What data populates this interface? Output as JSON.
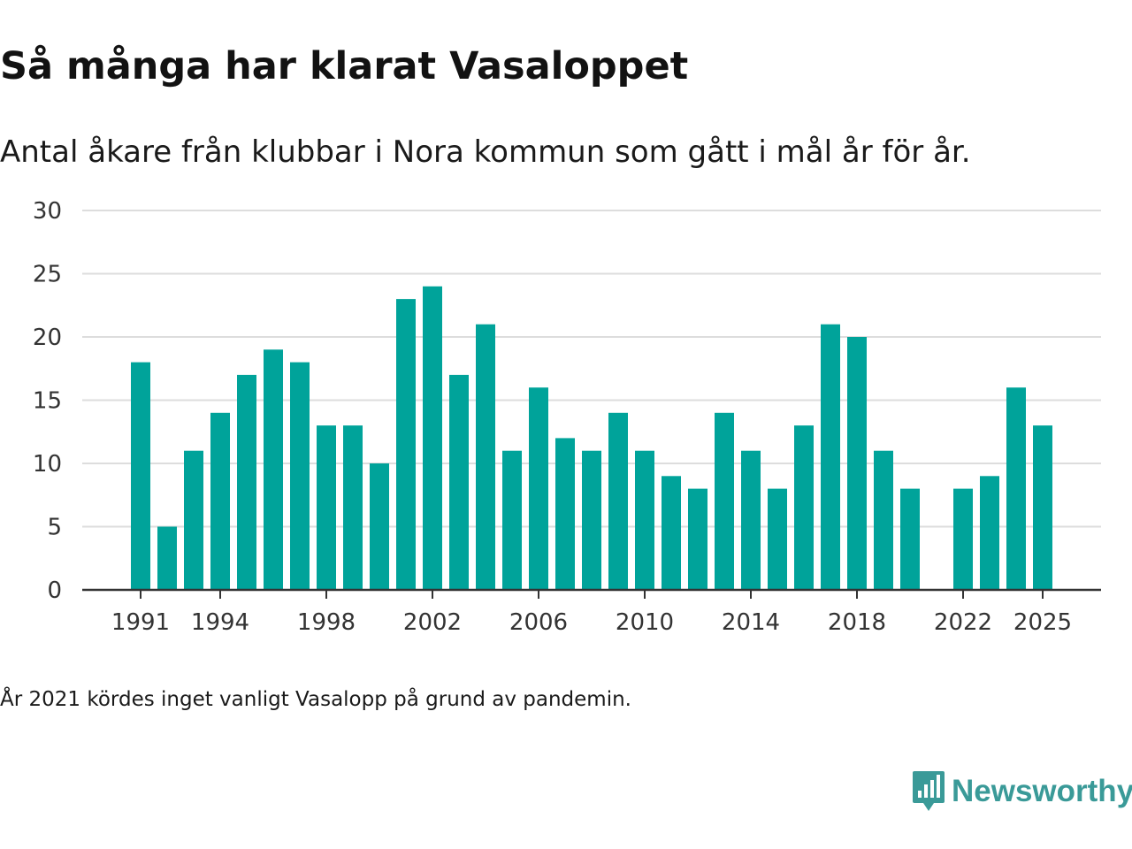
{
  "title": "Så många har klarat Vasaloppet",
  "subtitle": "Antal åkare från klubbar i Nora kommun som gått i mål år för år.",
  "note": "År 2021 kördes inget vanligt Vasalopp på grund av pandemin.",
  "logo": {
    "text": "Newsworthy",
    "color": "#3a9a98"
  },
  "colors": {
    "bar": "#00a39a",
    "grid": "#dddddd",
    "axis": "#333333"
  },
  "chart_data": {
    "type": "bar",
    "title": "Så många har klarat Vasaloppet",
    "xlabel": "",
    "ylabel": "",
    "ylim": [
      0,
      30
    ],
    "yticks": [
      0,
      5,
      10,
      15,
      20,
      25,
      30
    ],
    "grid": true,
    "xtick_labels": [
      "1991",
      "1994",
      "1998",
      "2002",
      "2006",
      "2010",
      "2014",
      "2018",
      "2022",
      "2025"
    ],
    "categories": [
      "1991",
      "1992",
      "1993",
      "1994",
      "1995",
      "1996",
      "1997",
      "1998",
      "1999",
      "2000",
      "2001",
      "2002",
      "2003",
      "2004",
      "2005",
      "2006",
      "2007",
      "2008",
      "2009",
      "2010",
      "2011",
      "2012",
      "2013",
      "2014",
      "2015",
      "2016",
      "2017",
      "2018",
      "2019",
      "2020",
      "2021",
      "2022",
      "2023",
      "2024",
      "2025"
    ],
    "values": [
      18,
      5,
      11,
      14,
      17,
      19,
      18,
      13,
      13,
      10,
      23,
      24,
      17,
      21,
      11,
      16,
      12,
      11,
      14,
      11,
      9,
      8,
      14,
      11,
      8,
      13,
      21,
      20,
      11,
      8,
      null,
      8,
      9,
      16,
      13
    ]
  }
}
